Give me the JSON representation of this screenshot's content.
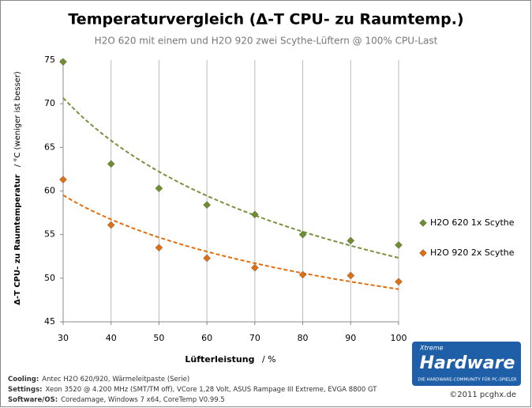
{
  "chart_data": {
    "type": "scatter",
    "title": "Temperaturvergleich  (Δ-T CPU- zu Raumtemp.)",
    "subtitle": "H2O 620 mit einem und H2O 920  zwei Scythe-Lüftern @ 100% CPU-Last",
    "y_label": "Δ-T CPU- zu Raumtemperatur",
    "y_label_unit": "/ °C (weniger ist besser)",
    "x_label": "Lüfterleistung",
    "x_label_unit": "/ %",
    "x": [
      30,
      40,
      50,
      60,
      70,
      80,
      90,
      100
    ],
    "series": [
      {
        "name": "H2O 620 1x Scythe",
        "color": "#6f8f2e",
        "trend_color": "#76923c",
        "values": [
          74.8,
          63.1,
          60.3,
          58.4,
          57.3,
          55.0,
          54.3,
          53.8
        ]
      },
      {
        "name": "H2O 920 2x Scythe",
        "color": "#e0700f",
        "trend_color": "#e46c0a",
        "values": [
          61.3,
          56.1,
          53.5,
          52.3,
          51.2,
          50.4,
          50.3,
          49.6
        ]
      }
    ],
    "trendline": "power",
    "xlim": [
      30,
      100
    ],
    "xticks": [
      30,
      40,
      50,
      60,
      70,
      80,
      90,
      100
    ],
    "ylim": [
      45,
      75
    ],
    "yticks": [
      45,
      50,
      55,
      60,
      65,
      70,
      75
    ],
    "grid": "x",
    "legend": "right",
    "notes": [
      {
        "label": "Cooling:",
        "text": "Antec H2O 620/920, Wärmeleitpaste (Serie)"
      },
      {
        "label": "Settings:",
        "text": "Xeon 3520 @ 4.200 MHz (SMT/TM off), VCore 1,28 Volt, ASUS Rampage III Extreme, EVGA 8800 GT"
      },
      {
        "label": "Software/OS:",
        "text": "Coredamage, Windows 7 x64, CoreTemp V0.99.5"
      }
    ],
    "logo": {
      "small": "Xtreme",
      "big": "Hardware",
      "tagline": "DIE HARDWARE-COMMUNITY FÜR PC-SPIELER"
    },
    "copyright": "©2011 pcghx.de"
  }
}
